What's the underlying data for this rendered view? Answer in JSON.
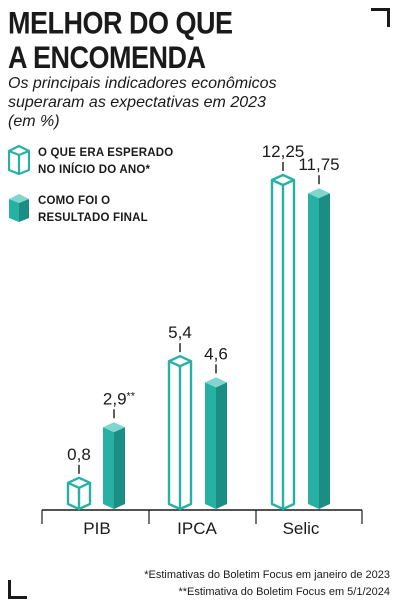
{
  "title_line1": "MELHOR DO QUE",
  "title_line2": "A ENCOMENDA",
  "subtitle": "Os principais indicadores econômicos superaram as expectativas em 2023 (em %)",
  "legend": {
    "expected": "O QUE ERA ESPERADO NO INÍCIO DO ANO*",
    "actual": "COMO FOI O RESULTADO FINAL"
  },
  "colors": {
    "teal": "#26b1a4",
    "teal_dark": "#1c8d83",
    "teal_light": "#7fd6cd",
    "outline": "#26b1a4",
    "text": "#1a1a1a"
  },
  "chart_data": {
    "type": "bar",
    "categories": [
      "PIB",
      "IPCA",
      "Selic"
    ],
    "series": [
      {
        "name": "O que era esperado no início do ano*",
        "values": [
          0.8,
          5.4,
          12.25
        ],
        "style": "outline"
      },
      {
        "name": "Como foi o resultado final",
        "values": [
          2.9,
          4.6,
          11.75
        ],
        "style": "filled"
      }
    ],
    "value_labels": [
      [
        "0,8",
        "5,4",
        "12,25"
      ],
      [
        "2,9**",
        "4,6",
        "11,75"
      ]
    ],
    "ylim": [
      0,
      12.25
    ],
    "grid": false
  },
  "footnotes": {
    "line1": "*Estimativas do Boletim Focus em janeiro de 2023",
    "line2": "**Estimativa do Boletim Focus em 5/1/2024"
  }
}
